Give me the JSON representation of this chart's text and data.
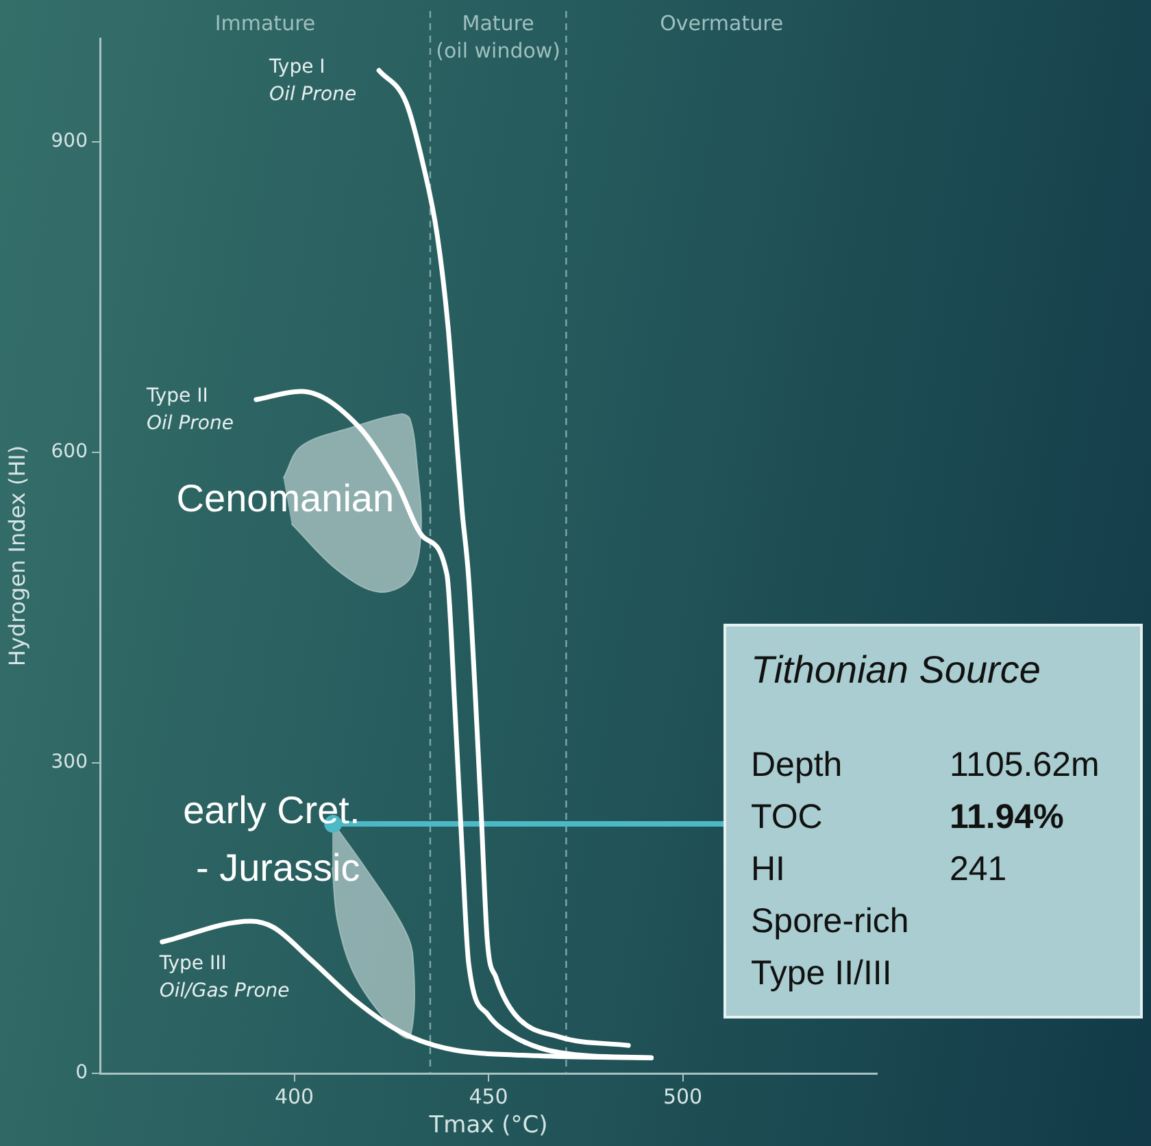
{
  "chart_data": {
    "type": "line",
    "xlabel": "Tmax (°C)",
    "ylabel": "Hydrogen Index (HI)",
    "xlim": [
      350,
      550
    ],
    "ylim": [
      0,
      1000
    ],
    "xticks": [
      400,
      450,
      500
    ],
    "yticks": [
      0,
      300,
      600,
      900
    ],
    "grid": false,
    "legend": false,
    "series": [
      {
        "name": "Type I\nOil Prone",
        "color": "#ffffff",
        "x": [
          421.8,
          428.8,
          433.3,
          436.8,
          439.6,
          441.4,
          443.2,
          444.9,
          448.0,
          449.7,
          451.9,
          456.8,
          468.4,
          486
        ],
        "values": [
          969,
          938,
          876,
          810,
          721,
          632,
          544,
          478,
          261,
          128,
          93,
          57,
          35,
          27
        ]
      },
      {
        "name": "Type II\nOil Prone",
        "color": "#ffffff",
        "x": [
          390.2,
          401.8,
          416.8,
          426.3,
          433.3,
          439.3,
          441.4,
          443.2,
          444.9,
          449.8,
          456.8,
          468.4,
          491.9
        ],
        "values": [
          651,
          659,
          624,
          571,
          518,
          482,
          349,
          216,
          106,
          57,
          35,
          20,
          15
        ]
      },
      {
        "name": "Type III\nOil/Gas Prone",
        "color": "#ffffff",
        "x": [
          366,
          388.8,
          394.7,
          404.2,
          415.8,
          427.4,
          439.3,
          462.5,
          491.9
        ],
        "values": [
          127,
          147,
          141,
          110,
          70,
          40,
          24,
          17,
          15
        ]
      },
      {
        "type": "area",
        "color": "#a7c2c2",
        "x": [
          397.2,
          401.8,
          414.7,
          427.4,
          429.8,
          431.6,
          432.6,
          429.8,
          421.8,
          411.2,
          399.3
        ],
        "values": [
          575,
          606,
          624,
          637,
          632,
          588,
          522,
          478,
          465,
          486,
          531
        ]
      },
      {
        "type": "area",
        "color": "#a7c2c2",
        "x": [
          409.8,
          418.2,
          427.4,
          430.5,
          429.8,
          425.3,
          415.8,
          411.2,
          409.8
        ],
        "values": [
          243,
          199,
          146,
          114,
          35,
          44,
          93,
          146,
          199
        ]
      },
      {
        "type": "scatter",
        "color": "#4db8c6",
        "x": [
          410
        ],
        "values": [
          241
        ]
      }
    ],
    "ref_lines": [
      {
        "axis": "x",
        "value": 435,
        "line_style": "dashed",
        "color": "#7fa8a8"
      },
      {
        "axis": "x",
        "value": 470,
        "line_style": "dashed",
        "color": "#7fa8a8"
      }
    ],
    "annotations": [
      "Immature",
      "Mature\n(oil window)",
      "Overmature",
      "Cenomanian",
      "early Cret.\n- Jurassic",
      "Tithonian Source",
      "Depth\t1105.62m",
      "TOC\t11.94%",
      "HI\t241",
      "Spore-rich",
      "Type II/III"
    ]
  }
}
